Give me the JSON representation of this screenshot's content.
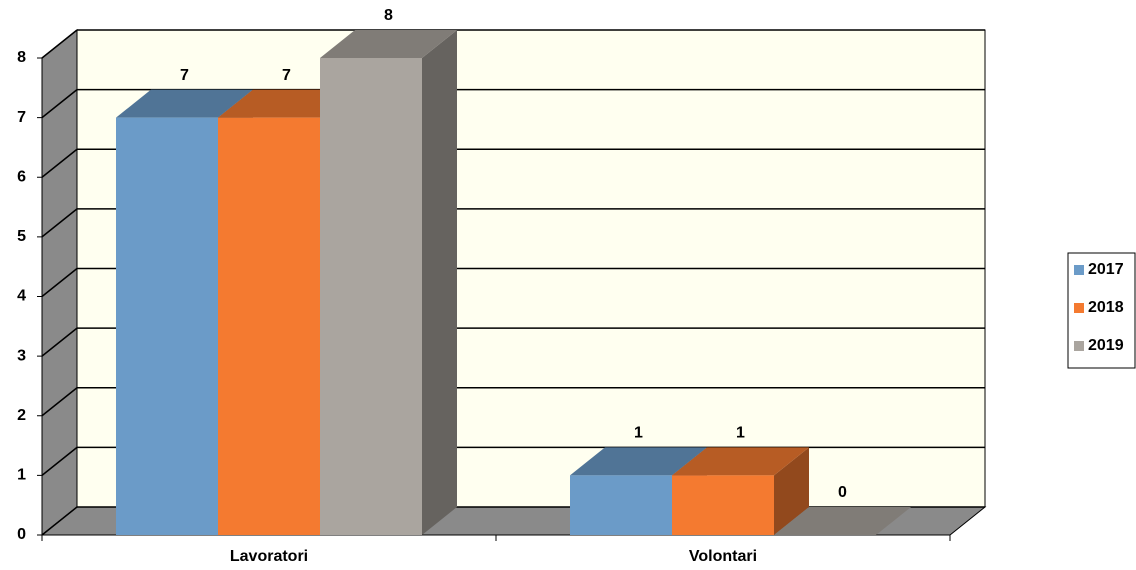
{
  "chart_data": {
    "type": "bar3d",
    "categories": [
      "Lavoratori",
      "Volontari"
    ],
    "series": [
      {
        "name": "2017",
        "color": "#6b9bc8",
        "values": [
          7,
          1
        ]
      },
      {
        "name": "2018",
        "color": "#f47a30",
        "values": [
          7,
          1
        ]
      },
      {
        "name": "2019",
        "color": "#aaa59f",
        "values": [
          8,
          0
        ]
      }
    ],
    "ylim": [
      0,
      8
    ],
    "yticks": [
      0,
      1,
      2,
      3,
      4,
      5,
      6,
      7,
      8
    ],
    "grid": true,
    "legend": "right"
  }
}
